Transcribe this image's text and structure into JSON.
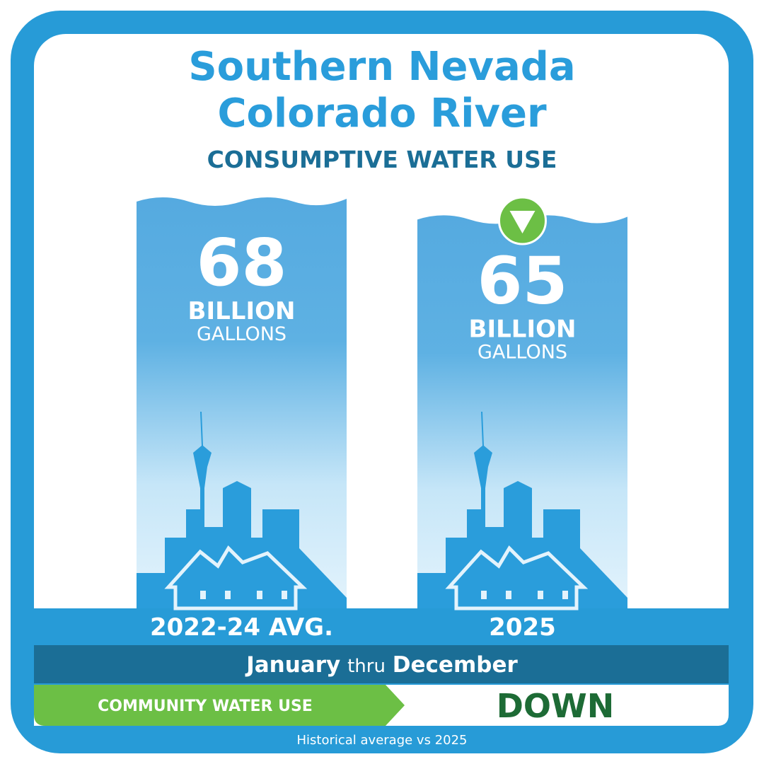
{
  "chart_data": {
    "type": "bar",
    "title": "Southern Nevada Colorado River",
    "subtitle": "CONSUMPTIVE WATER USE",
    "categories": [
      "2022-24 AVG.",
      "2025"
    ],
    "values": [
      68,
      65
    ],
    "units": [
      "BILLION",
      "GALLONS"
    ],
    "color": "#55aae0",
    "period": [
      "January",
      "thru",
      "December"
    ],
    "community_label": "COMMUNITY WATER USE",
    "trend": "DOWN",
    "footnote": "Historical average vs 2025"
  }
}
